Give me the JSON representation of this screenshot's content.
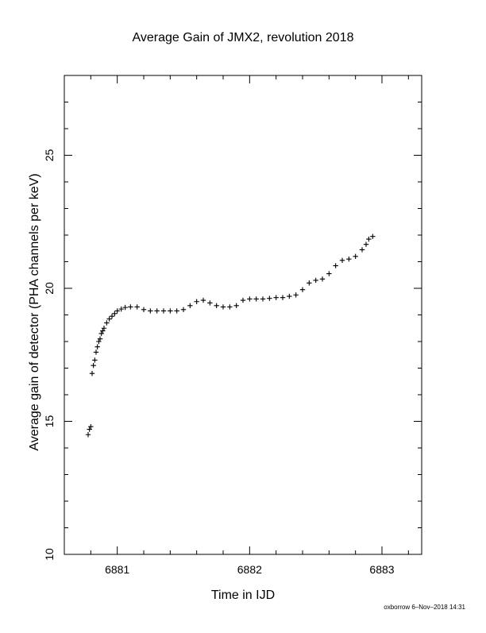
{
  "chart_data": {
    "type": "scatter",
    "title": "Average Gain of JMX2, revolution 2018",
    "xlabel": "Time in IJD",
    "ylabel": "Average gain of detector (PHA channels per keV)",
    "xlim": [
      6880.6,
      6883.3
    ],
    "ylim": [
      10,
      28
    ],
    "x_major_ticks": [
      6881,
      6882,
      6883
    ],
    "x_tick_labels": [
      "6881",
      "6882",
      "6883"
    ],
    "x_minor_step": 0.2,
    "y_major_ticks": [
      10,
      15,
      20,
      25
    ],
    "y_tick_labels": [
      "10",
      "15",
      "20",
      "25"
    ],
    "y_minor_step": 1,
    "grid": false,
    "marker": "plus",
    "series": [
      {
        "x": [
          6880.78,
          6880.79,
          6880.8,
          6880.81,
          6880.82,
          6880.83,
          6880.84,
          6880.85,
          6880.86,
          6880.87,
          6880.88,
          6880.89,
          6880.9,
          6880.92,
          6880.94,
          6880.96,
          6880.98,
          6881.0,
          6881.03,
          6881.06,
          6881.1,
          6881.15,
          6881.2,
          6881.25,
          6881.3,
          6881.35,
          6881.4,
          6881.45,
          6881.5,
          6881.55,
          6881.6,
          6881.65,
          6881.7,
          6881.75,
          6881.8,
          6881.85,
          6881.9,
          6881.95,
          6882.0,
          6882.05,
          6882.1,
          6882.15,
          6882.2,
          6882.25,
          6882.3,
          6882.35,
          6882.4,
          6882.45,
          6882.5,
          6882.55,
          6882.6,
          6882.65,
          6882.7,
          6882.75,
          6882.8,
          6882.85,
          6882.88,
          6882.9,
          6882.93
        ],
        "y": [
          14.5,
          14.7,
          14.8,
          16.8,
          17.1,
          17.3,
          17.6,
          17.8,
          18.0,
          18.1,
          18.3,
          18.4,
          18.5,
          18.7,
          18.85,
          18.95,
          19.05,
          19.15,
          19.22,
          19.28,
          19.3,
          19.3,
          19.2,
          19.15,
          19.15,
          19.15,
          19.15,
          19.15,
          19.2,
          19.35,
          19.5,
          19.55,
          19.45,
          19.35,
          19.3,
          19.3,
          19.35,
          19.55,
          19.6,
          19.6,
          19.6,
          19.62,
          19.65,
          19.65,
          19.7,
          19.75,
          19.95,
          20.2,
          20.3,
          20.35,
          20.55,
          20.85,
          21.05,
          21.1,
          21.2,
          21.45,
          21.65,
          21.85,
          21.95
        ]
      }
    ]
  },
  "footer": {
    "credit": "oxborrow  6–Nov–2018 14:31"
  }
}
